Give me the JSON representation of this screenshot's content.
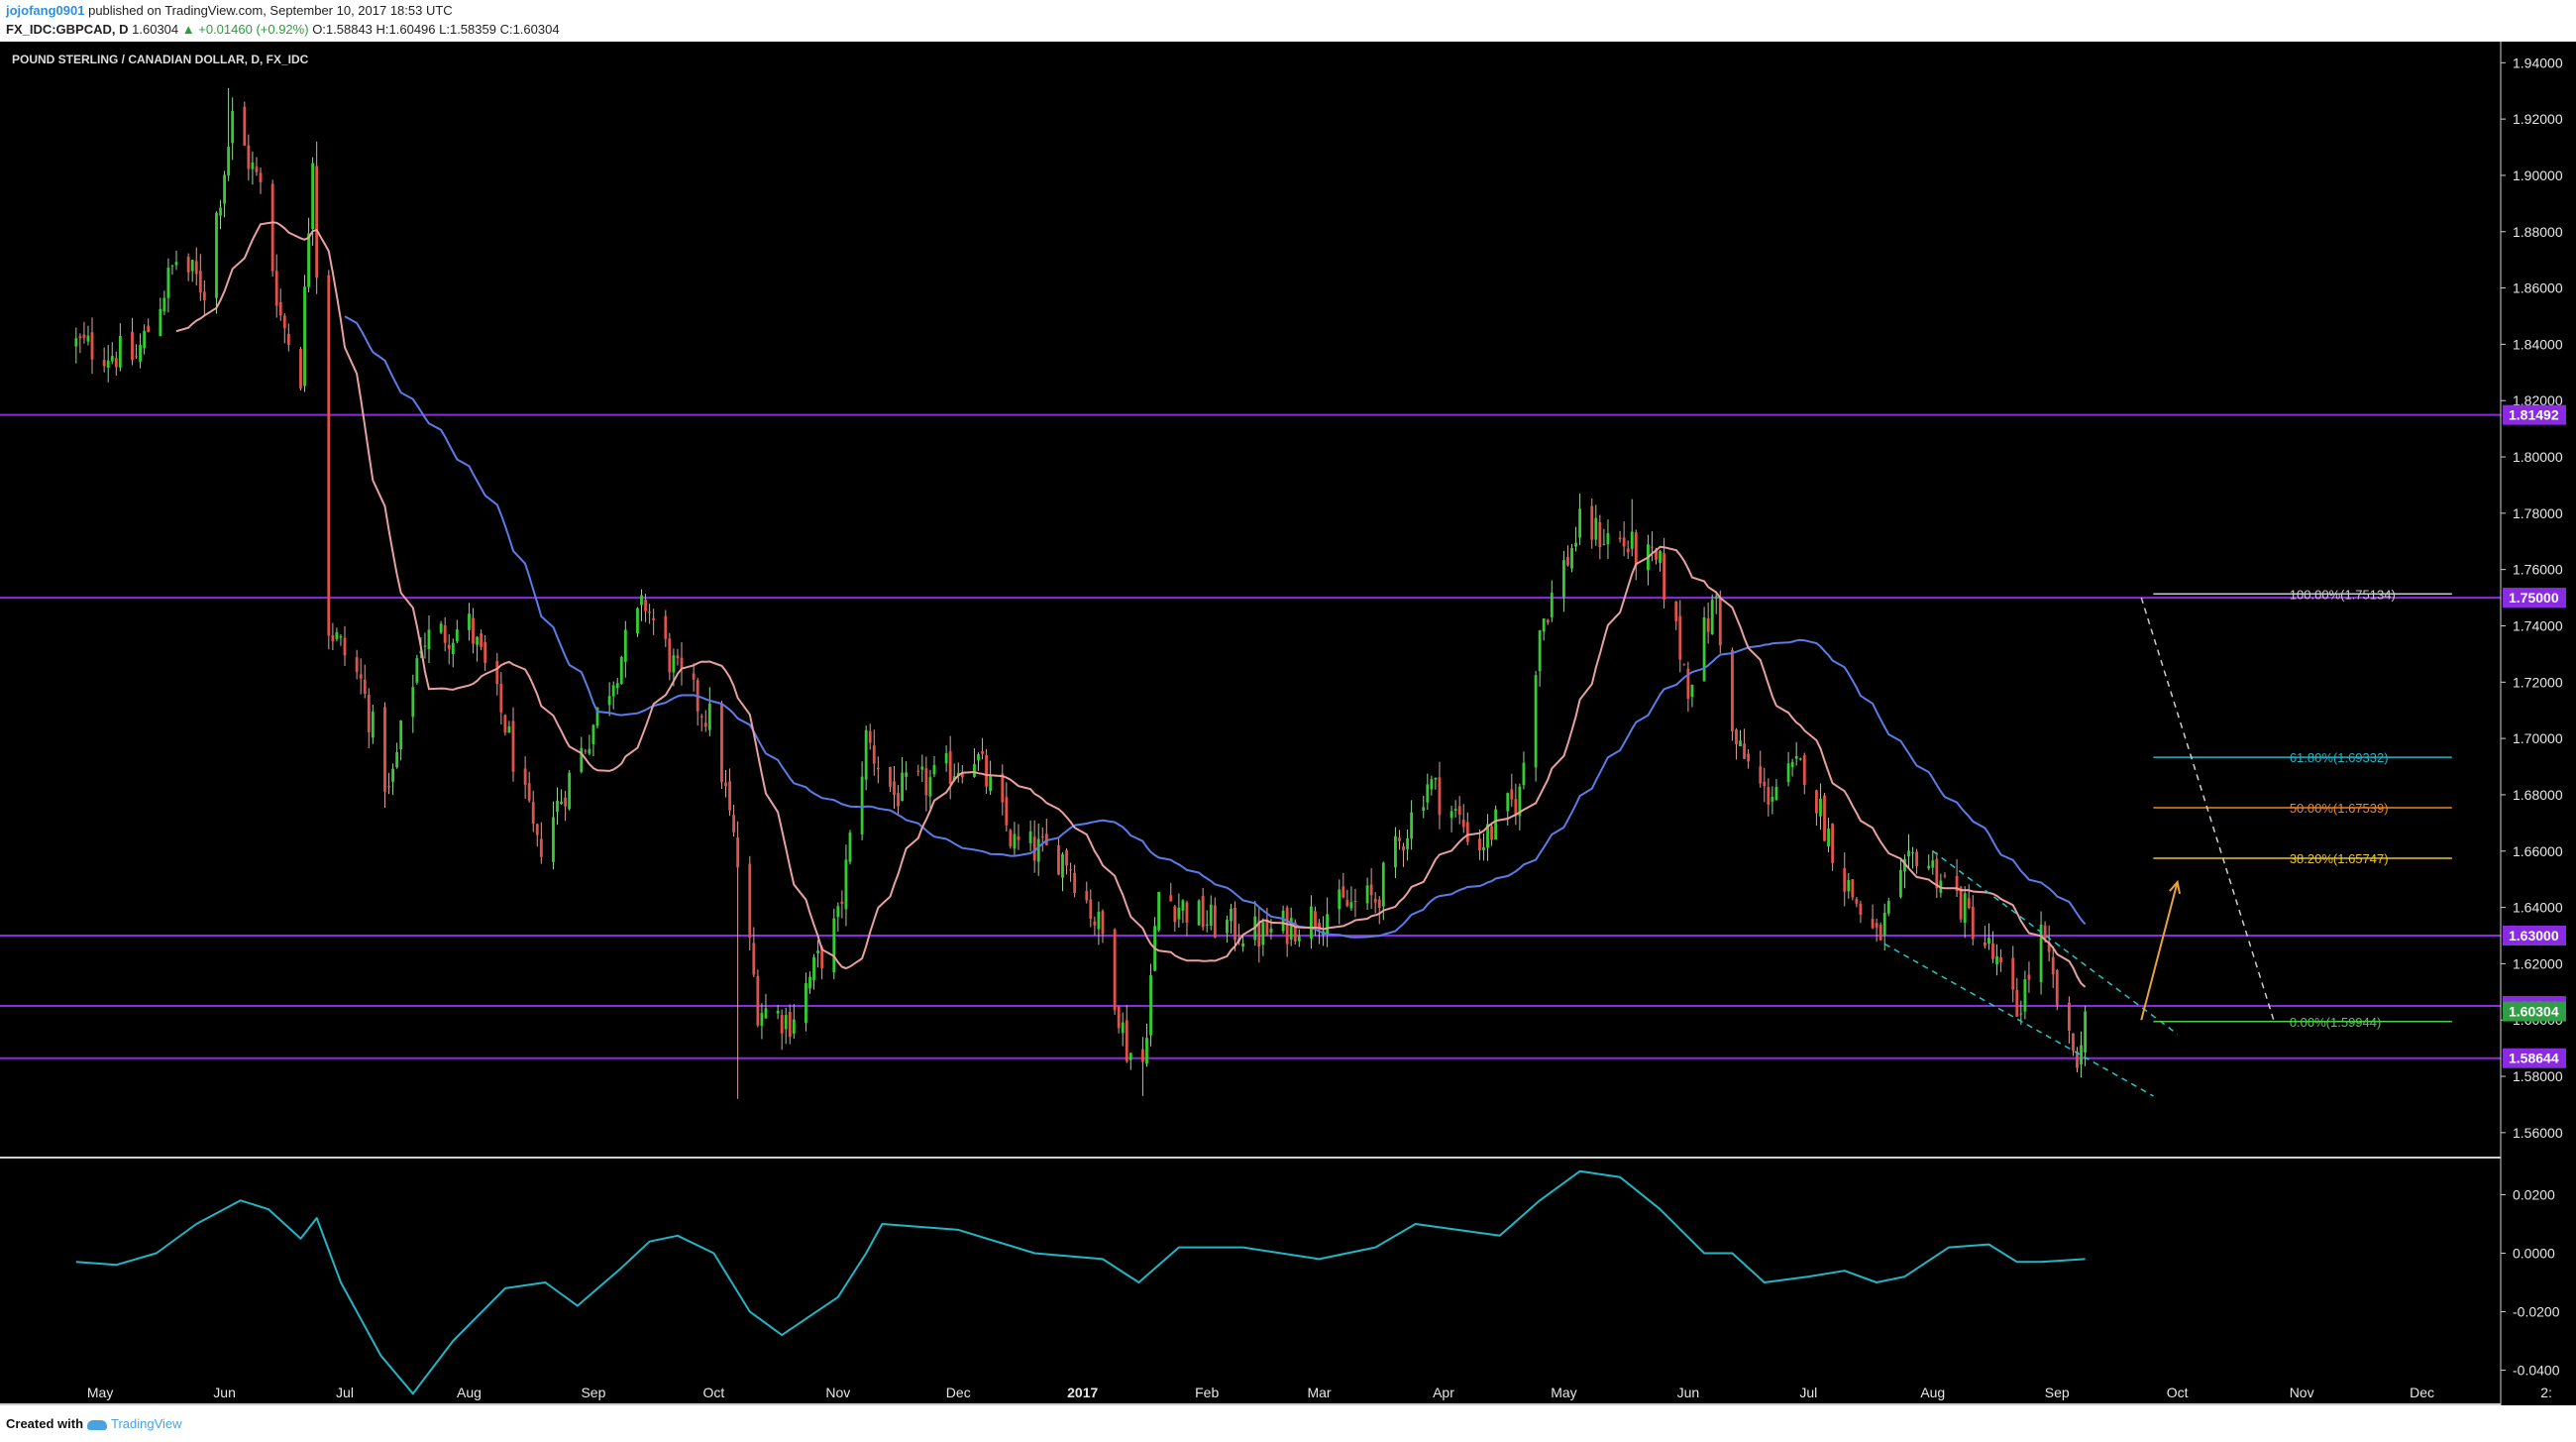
{
  "header": {
    "user": "jojofang0901",
    "published": "published on TradingView.com, September 10, 2017 18:53 UTC",
    "symbol": "FX_IDC:GBPCAD, D",
    "last": "1.60304",
    "change": "▲ +0.01460 (+0.92%)",
    "ohlc": "O:1.58843 H:1.60496 L:1.58359 C:1.60304"
  },
  "footer": {
    "created_with": "Created with",
    "brand": "TradingView"
  },
  "colors": {
    "background": "#000000",
    "candle_up": "#33cc33",
    "candle_down": "#e0524a",
    "ma_fast": "#e8a0a0",
    "ma_slow": "#5a7ce8",
    "horizontal_lines": "#8a2be2",
    "oscillator": "#22b5c4",
    "fib_100": "#cccccc",
    "fib_618": "#22b5c4",
    "fib_50": "#e8862a",
    "fib_382": "#e8c52a",
    "fib_0": "#4fcc4f",
    "projection_arrow": "#e8a23a"
  },
  "chart_data": {
    "type": "candlestick",
    "title": "POUND STERLING / CANADIAN DOLLAR, D, FX_IDC",
    "x_labels": [
      "May",
      "Jun",
      "Jul",
      "Aug",
      "Sep",
      "Oct",
      "Nov",
      "Dec",
      "2017",
      "Feb",
      "Mar",
      "Apr",
      "May",
      "Jun",
      "Jul",
      "Aug",
      "Sep",
      "Oct",
      "Nov",
      "Dec",
      "2:"
    ],
    "y_ticks": [
      "1.94000",
      "1.92000",
      "1.90000",
      "1.88000",
      "1.86000",
      "1.84000",
      "1.82000",
      "1.80000",
      "1.78000",
      "1.76000",
      "1.74000",
      "1.72000",
      "1.70000",
      "1.68000",
      "1.66000",
      "1.64000",
      "1.62000",
      "1.60000",
      "1.58000",
      "1.56000"
    ],
    "ylim": [
      1.5515,
      1.9475
    ],
    "close_path": [
      {
        "date": "2016-04-25",
        "close": 1.84
      },
      {
        "date": "2016-05-10",
        "close": 1.835
      },
      {
        "date": "2016-05-20",
        "close": 1.87
      },
      {
        "date": "2016-05-27",
        "close": 1.86
      },
      {
        "date": "2016-06-03",
        "close": 1.92
      },
      {
        "date": "2016-06-10",
        "close": 1.895
      },
      {
        "date": "2016-06-15",
        "close": 1.85
      },
      {
        "date": "2016-06-20",
        "close": 1.83
      },
      {
        "date": "2016-06-23",
        "close": 1.91
      },
      {
        "date": "2016-06-27",
        "close": 1.74
      },
      {
        "date": "2016-07-05",
        "close": 1.72
      },
      {
        "date": "2016-07-12",
        "close": 1.68
      },
      {
        "date": "2016-07-20",
        "close": 1.735
      },
      {
        "date": "2016-08-01",
        "close": 1.74
      },
      {
        "date": "2016-08-10",
        "close": 1.705
      },
      {
        "date": "2016-08-18",
        "close": 1.66
      },
      {
        "date": "2016-09-01",
        "close": 1.705
      },
      {
        "date": "2016-09-08",
        "close": 1.73
      },
      {
        "date": "2016-09-14",
        "close": 1.748
      },
      {
        "date": "2016-09-22",
        "close": 1.722
      },
      {
        "date": "2016-10-01",
        "close": 1.705
      },
      {
        "date": "2016-10-07",
        "close": 1.655
      },
      {
        "date": "2016-10-12",
        "close": 1.605
      },
      {
        "date": "2016-10-20",
        "close": 1.6
      },
      {
        "date": "2016-11-01",
        "close": 1.635
      },
      {
        "date": "2016-11-08",
        "close": 1.7
      },
      {
        "date": "2016-11-15",
        "close": 1.68
      },
      {
        "date": "2016-11-25",
        "close": 1.685
      },
      {
        "date": "2016-12-05",
        "close": 1.695
      },
      {
        "date": "2016-12-15",
        "close": 1.662
      },
      {
        "date": "2016-12-28",
        "close": 1.658
      },
      {
        "date": "2017-01-06",
        "close": 1.63
      },
      {
        "date": "2017-01-12",
        "close": 1.59
      },
      {
        "date": "2017-01-16",
        "close": 1.585
      },
      {
        "date": "2017-01-20",
        "close": 1.645
      },
      {
        "date": "2017-02-01",
        "close": 1.635
      },
      {
        "date": "2017-02-15",
        "close": 1.63
      },
      {
        "date": "2017-03-01",
        "close": 1.638
      },
      {
        "date": "2017-03-15",
        "close": 1.643
      },
      {
        "date": "2017-03-28",
        "close": 1.685
      },
      {
        "date": "2017-04-10",
        "close": 1.662
      },
      {
        "date": "2017-04-20",
        "close": 1.68
      },
      {
        "date": "2017-04-25",
        "close": 1.74
      },
      {
        "date": "2017-05-05",
        "close": 1.775
      },
      {
        "date": "2017-05-15",
        "close": 1.77
      },
      {
        "date": "2017-05-25",
        "close": 1.76
      },
      {
        "date": "2017-06-01",
        "close": 1.72
      },
      {
        "date": "2017-06-08",
        "close": 1.75
      },
      {
        "date": "2017-06-12",
        "close": 1.7
      },
      {
        "date": "2017-06-20",
        "close": 1.68
      },
      {
        "date": "2017-06-30",
        "close": 1.69
      },
      {
        "date": "2017-07-10",
        "close": 1.65
      },
      {
        "date": "2017-07-18",
        "close": 1.628
      },
      {
        "date": "2017-07-28",
        "close": 1.66
      },
      {
        "date": "2017-08-05",
        "close": 1.648
      },
      {
        "date": "2017-08-15",
        "close": 1.625
      },
      {
        "date": "2017-08-22",
        "close": 1.603
      },
      {
        "date": "2017-08-28",
        "close": 1.63
      },
      {
        "date": "2017-09-04",
        "close": 1.59
      },
      {
        "date": "2017-09-07",
        "close": 1.588
      },
      {
        "date": "2017-09-08",
        "close": 1.60304
      }
    ],
    "wick_spikes": [
      {
        "date": "2016-06-02",
        "high": 1.931
      },
      {
        "date": "2016-06-24",
        "high": 1.912
      },
      {
        "date": "2016-10-07",
        "low": 1.572
      },
      {
        "date": "2017-01-16",
        "low": 1.573
      },
      {
        "date": "2017-05-18",
        "high": 1.785
      }
    ],
    "horizontal_levels": [
      {
        "price": 1.81492,
        "label": "1.81492"
      },
      {
        "price": 1.75,
        "label": "1.75000"
      },
      {
        "price": 1.63,
        "label": "1.63000"
      },
      {
        "price": 1.605,
        "label": "1.60500"
      },
      {
        "price": 1.58644,
        "label": "1.58644"
      }
    ],
    "last_price": {
      "price": 1.60304,
      "label": "1.60304"
    },
    "fibonacci": {
      "start_date": "2017-09-25",
      "end_date": "2017-10-25",
      "levels": [
        {
          "ratio": "100.00%",
          "price": 1.75134,
          "label": "100.00%(1.75134)"
        },
        {
          "ratio": "61.80%",
          "price": 1.69332,
          "label": "61.80%(1.69332)"
        },
        {
          "ratio": "50.00%",
          "price": 1.67539,
          "label": "50.00%(1.67539)"
        },
        {
          "ratio": "38.20%",
          "price": 1.65747,
          "label": "38.20%(1.65747)"
        },
        {
          "ratio": "0.00%",
          "price": 1.59944,
          "label": "0.00%(1.59944)"
        }
      ]
    },
    "channel": {
      "upper": [
        {
          "date": "2017-08-01",
          "price": 1.66
        },
        {
          "date": "2017-10-01",
          "price": 1.595
        }
      ],
      "lower": [
        {
          "date": "2017-07-20",
          "price": 1.627
        },
        {
          "date": "2017-09-25",
          "price": 1.573
        }
      ]
    },
    "projection_arrow": {
      "from": {
        "date": "2017-09-22",
        "price": 1.6
      },
      "to": {
        "date": "2017-10-01",
        "price": 1.649
      }
    },
    "fib_dashed_line": {
      "from": {
        "date": "2017-09-22",
        "price": 1.75
      },
      "to": {
        "date": "2017-10-25",
        "price": 1.6
      }
    },
    "oscillator": {
      "y_ticks": [
        "0.0200",
        "0.0000",
        "-0.0200",
        "-0.0400"
      ],
      "ylim": [
        -0.052,
        0.032
      ],
      "points": [
        {
          "date": "2016-04-25",
          "v": -0.003
        },
        {
          "date": "2016-05-05",
          "v": -0.004
        },
        {
          "date": "2016-05-15",
          "v": 0.0
        },
        {
          "date": "2016-05-25",
          "v": 0.01
        },
        {
          "date": "2016-06-05",
          "v": 0.018
        },
        {
          "date": "2016-06-12",
          "v": 0.015
        },
        {
          "date": "2016-06-20",
          "v": 0.005
        },
        {
          "date": "2016-06-24",
          "v": 0.012
        },
        {
          "date": "2016-06-30",
          "v": -0.01
        },
        {
          "date": "2016-07-10",
          "v": -0.035
        },
        {
          "date": "2016-07-18",
          "v": -0.048
        },
        {
          "date": "2016-07-28",
          "v": -0.03
        },
        {
          "date": "2016-08-10",
          "v": -0.012
        },
        {
          "date": "2016-08-20",
          "v": -0.01
        },
        {
          "date": "2016-08-28",
          "v": -0.018
        },
        {
          "date": "2016-09-08",
          "v": -0.005
        },
        {
          "date": "2016-09-15",
          "v": 0.004
        },
        {
          "date": "2016-09-22",
          "v": 0.006
        },
        {
          "date": "2016-10-01",
          "v": 0.0
        },
        {
          "date": "2016-10-10",
          "v": -0.02
        },
        {
          "date": "2016-10-18",
          "v": -0.028
        },
        {
          "date": "2016-11-01",
          "v": -0.015
        },
        {
          "date": "2016-11-08",
          "v": 0.0
        },
        {
          "date": "2016-11-12",
          "v": 0.01
        },
        {
          "date": "2016-12-01",
          "v": 0.008
        },
        {
          "date": "2016-12-20",
          "v": 0.0
        },
        {
          "date": "2017-01-06",
          "v": -0.002
        },
        {
          "date": "2017-01-15",
          "v": -0.01
        },
        {
          "date": "2017-01-25",
          "v": 0.002
        },
        {
          "date": "2017-02-10",
          "v": 0.002
        },
        {
          "date": "2017-03-01",
          "v": -0.002
        },
        {
          "date": "2017-03-15",
          "v": 0.002
        },
        {
          "date": "2017-03-25",
          "v": 0.01
        },
        {
          "date": "2017-04-15",
          "v": 0.006
        },
        {
          "date": "2017-04-25",
          "v": 0.018
        },
        {
          "date": "2017-05-05",
          "v": 0.028
        },
        {
          "date": "2017-05-15",
          "v": 0.026
        },
        {
          "date": "2017-05-25",
          "v": 0.015
        },
        {
          "date": "2017-06-05",
          "v": 0.0
        },
        {
          "date": "2017-06-12",
          "v": 0.0
        },
        {
          "date": "2017-06-20",
          "v": -0.01
        },
        {
          "date": "2017-07-01",
          "v": -0.008
        },
        {
          "date": "2017-07-10",
          "v": -0.006
        },
        {
          "date": "2017-07-18",
          "v": -0.01
        },
        {
          "date": "2017-07-25",
          "v": -0.008
        },
        {
          "date": "2017-08-05",
          "v": 0.002
        },
        {
          "date": "2017-08-15",
          "v": 0.003
        },
        {
          "date": "2017-08-22",
          "v": -0.003
        },
        {
          "date": "2017-08-28",
          "v": -0.003
        },
        {
          "date": "2017-09-08",
          "v": -0.002
        }
      ]
    }
  }
}
